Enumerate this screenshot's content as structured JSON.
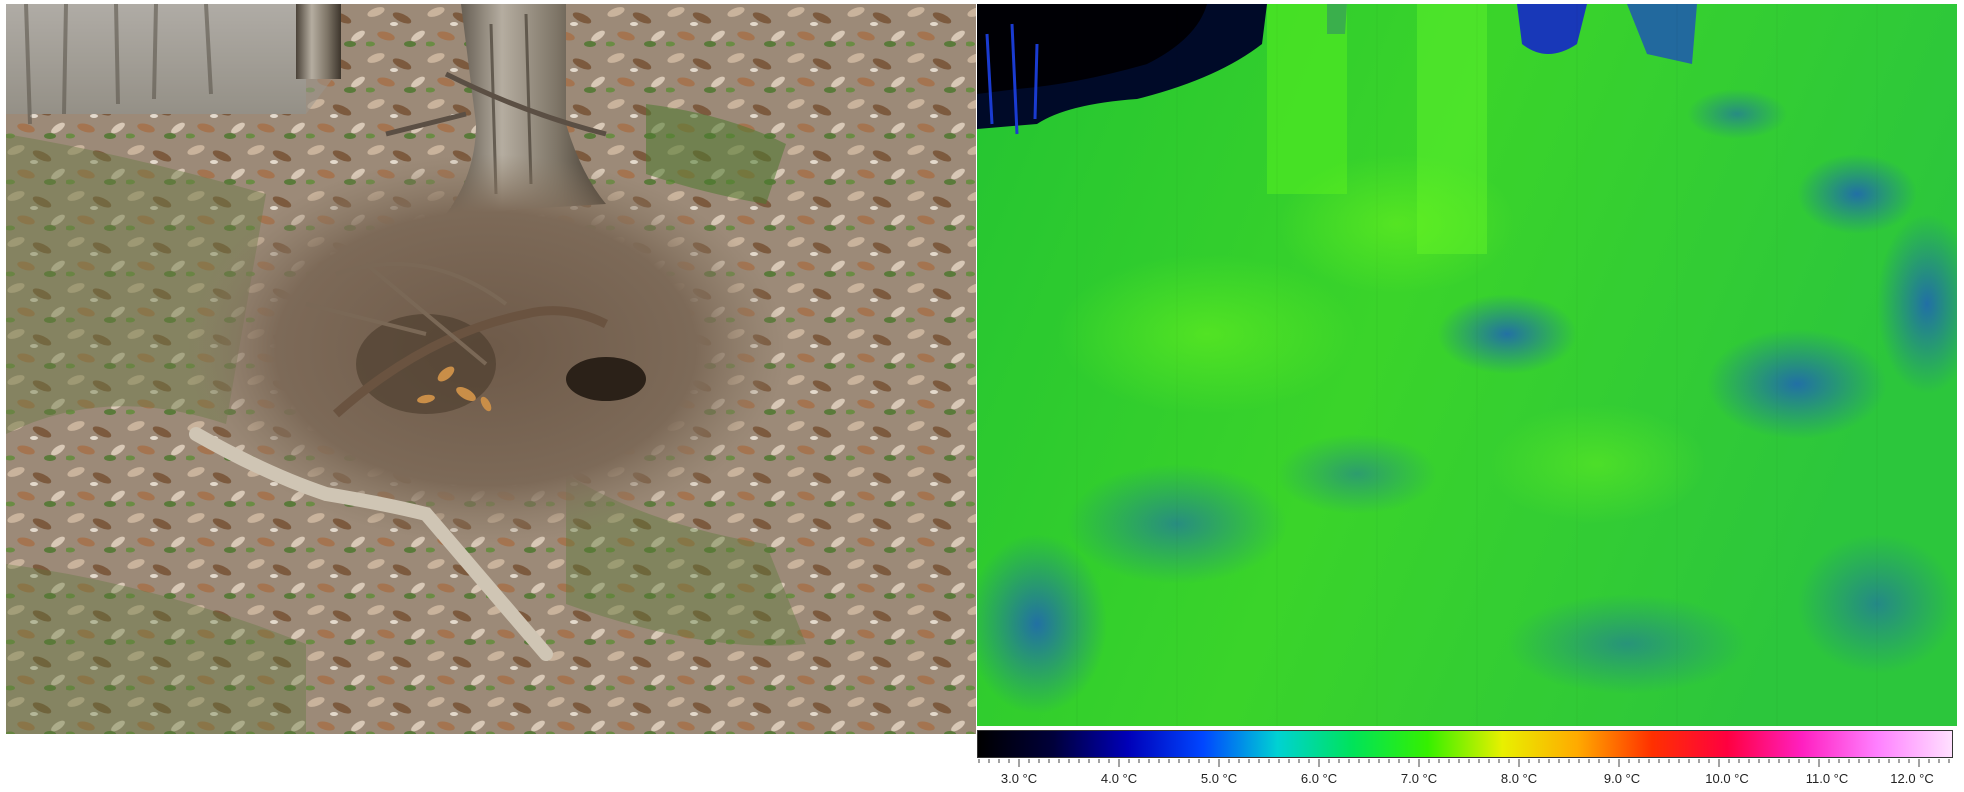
{
  "left_panel": {
    "icon": "forest-floor-photo"
  },
  "right_panel": {
    "icon": "thermal-image",
    "colors": {
      "cold": "#000010",
      "blue": "#0f2bd6",
      "teal": "#1f9c8e",
      "green": "#2ed62a",
      "light_green": "#5cf22c"
    }
  },
  "scale": {
    "gradient_colors": [
      "#000000",
      "#00003a",
      "#0000b8",
      "#0046ff",
      "#00d2d2",
      "#00e35a",
      "#35f000",
      "#e8f000",
      "#ffaa00",
      "#ff3000",
      "#ff0040",
      "#ff20c0",
      "#ff80ff",
      "#ffe0ff"
    ],
    "labels": [
      "3.0 °C",
      "4.0 °C",
      "5.0 °C",
      "6.0 °C",
      "7.0 °C",
      "8.0 °C",
      "9.0 °C",
      "10.0 °C",
      "11.0 °C",
      "12.0 °C"
    ]
  }
}
